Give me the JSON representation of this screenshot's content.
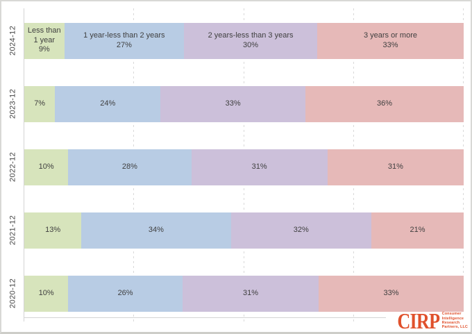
{
  "chart_data": {
    "type": "bar",
    "variant": "stacked-100-horizontal",
    "title": "",
    "categories": [
      "2024-12",
      "2023-12",
      "2022-12",
      "2021-12",
      "2020-12"
    ],
    "series": [
      {
        "name": "Less than 1 year",
        "color": "#d7e4bc",
        "values": [
          9,
          7,
          10,
          13,
          10
        ]
      },
      {
        "name": "1 year-less than 2 years",
        "color": "#b8cce4",
        "values": [
          27,
          24,
          28,
          34,
          26
        ]
      },
      {
        "name": "2 years-less than 3 years",
        "color": "#ccc0da",
        "values": [
          30,
          33,
          31,
          32,
          31
        ]
      },
      {
        "name": "3 years or more",
        "color": "#e6b9b8",
        "values": [
          33,
          36,
          31,
          21,
          33
        ]
      }
    ],
    "labels": {
      "first_row_includes_series_names": true,
      "value_suffix": "%"
    },
    "xlim": [
      0,
      100
    ],
    "gridline_percents": [
      25,
      50,
      75,
      100
    ],
    "grid": "dashed-vertical",
    "legend_position": "none"
  },
  "branding": {
    "logo_text": "CIRP",
    "logo_sub_lines": [
      "Consumer",
      "Intelligence",
      "Research",
      "Partners, LLC"
    ],
    "logo_color": "#e0512c"
  },
  "colors": {
    "label_text": "#3f3f3f",
    "axis_text": "#444444",
    "gridline": "#d9d9d9",
    "axis_line": "#d4d4d4",
    "frame_border": "#d8d8d5",
    "background": "#ffffff"
  }
}
